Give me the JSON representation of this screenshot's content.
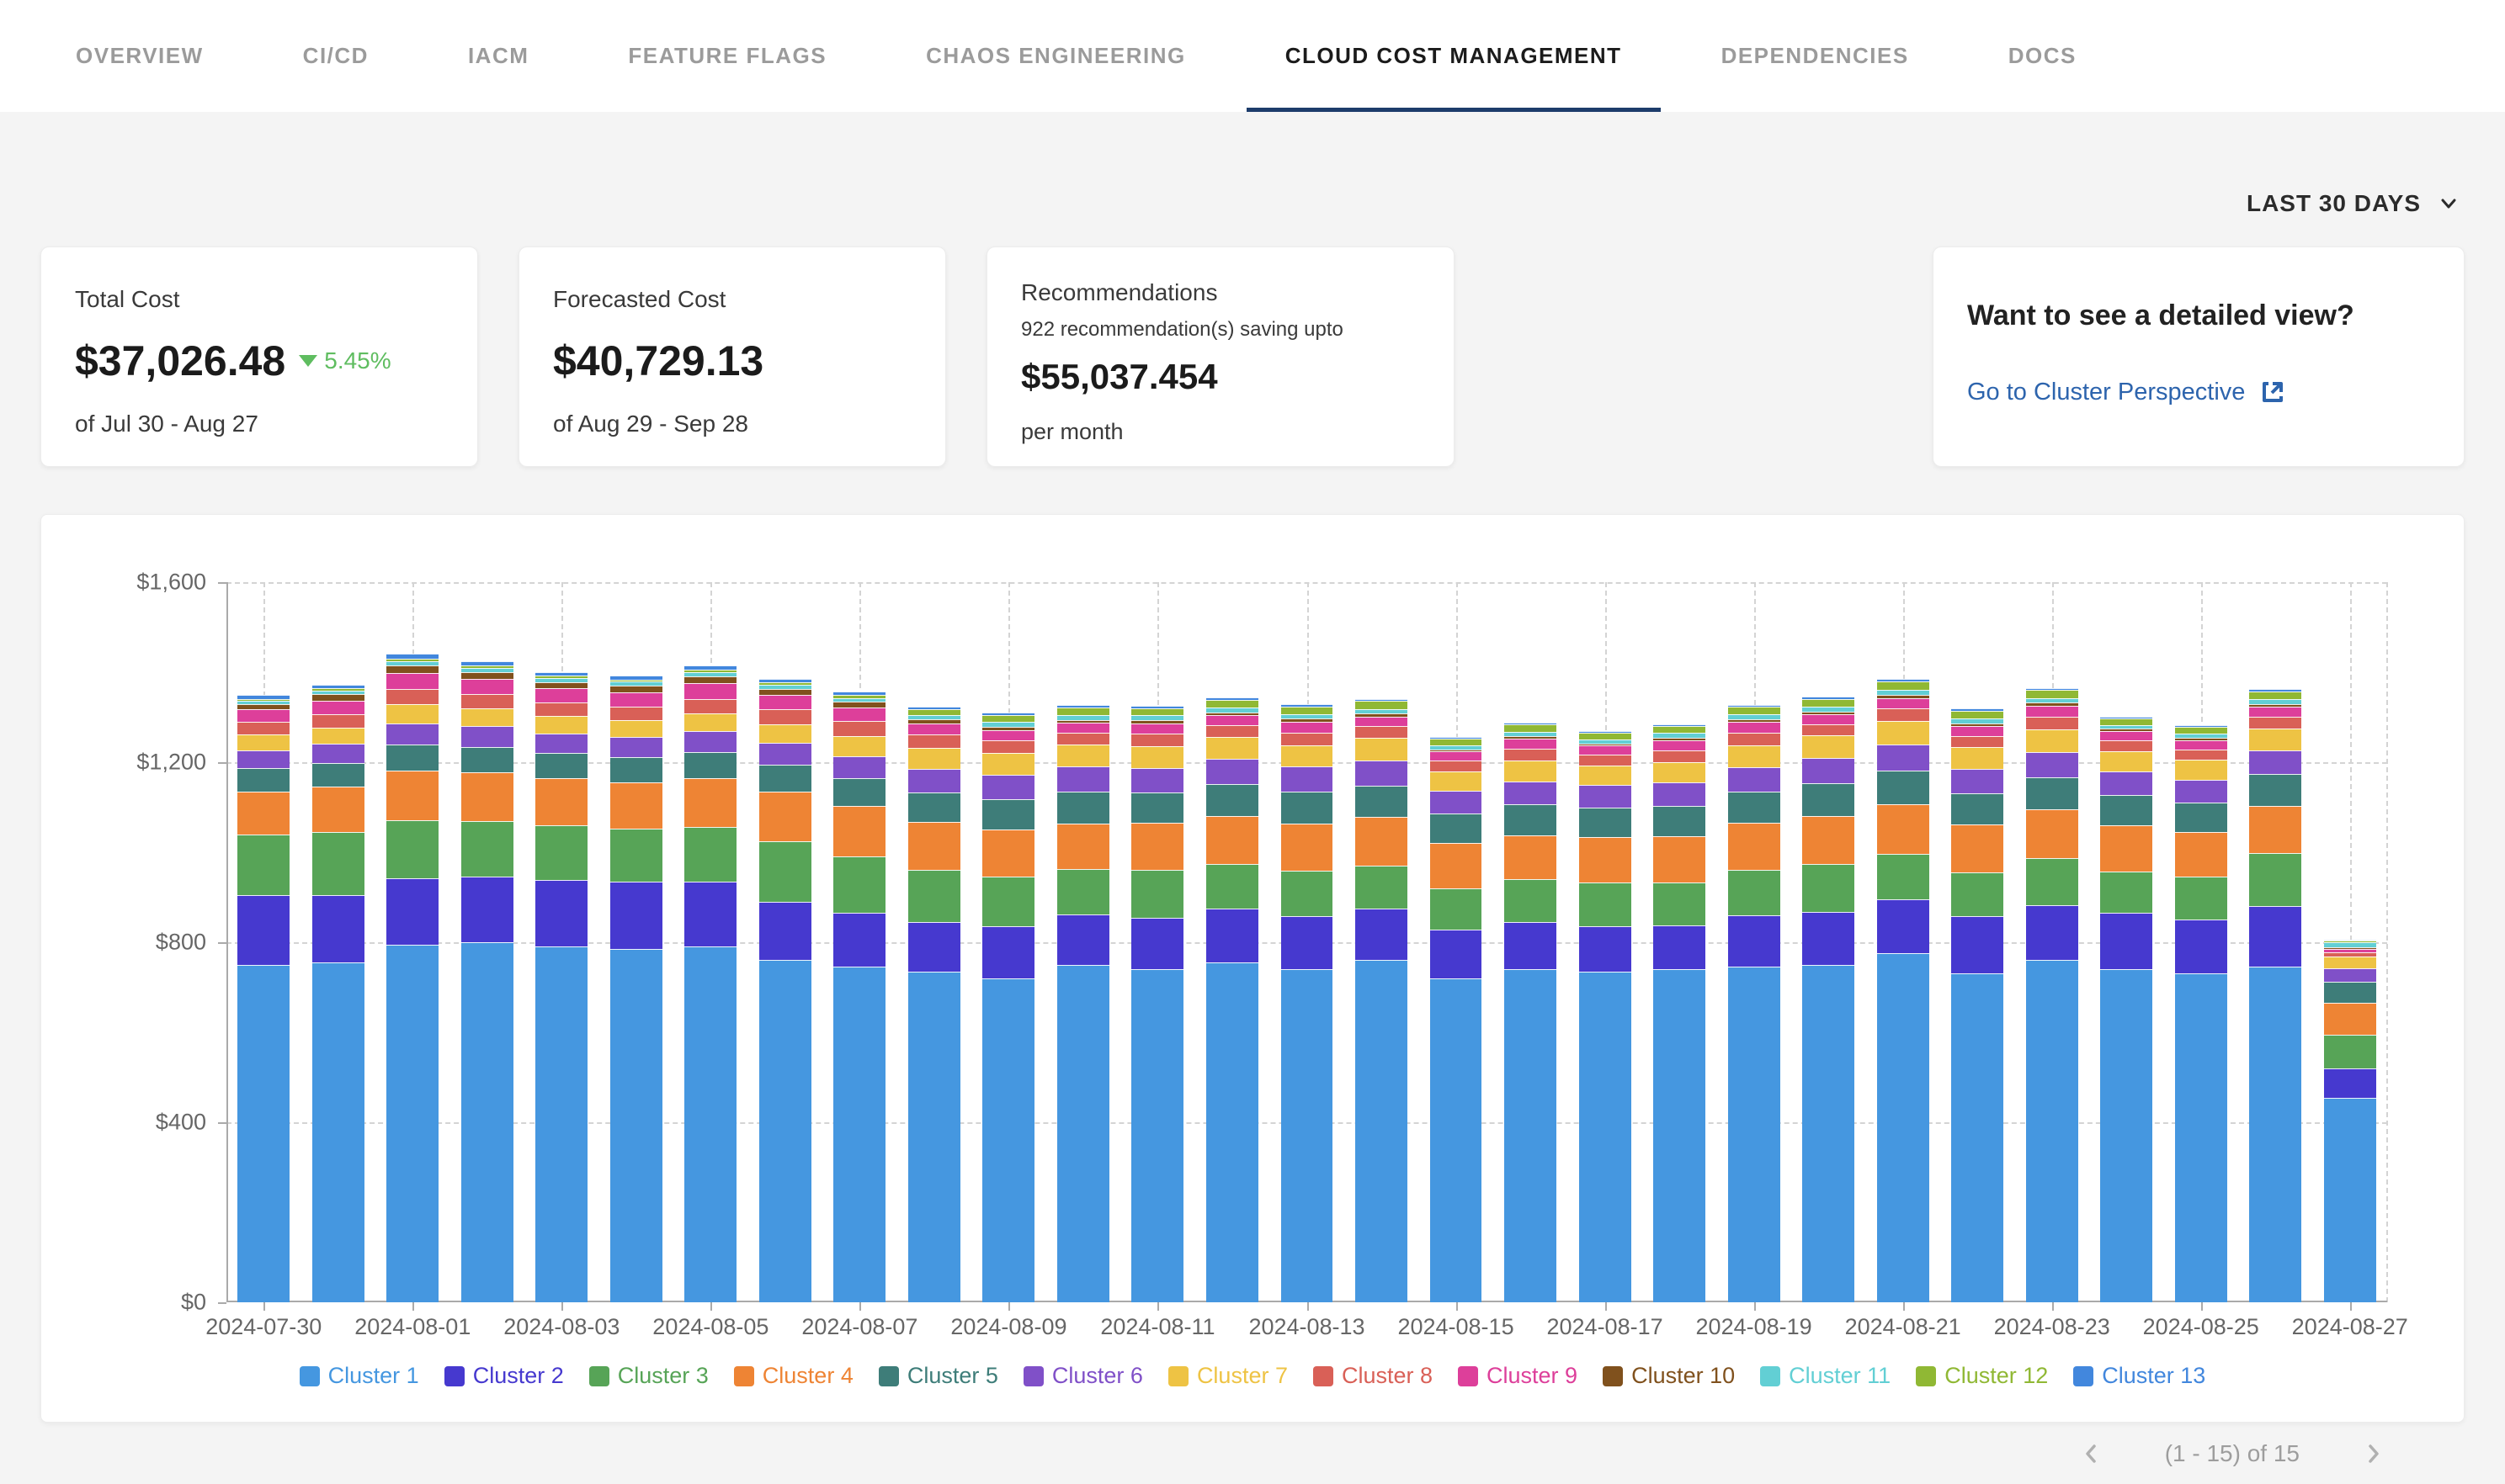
{
  "tabs": {
    "items": [
      {
        "label": "OVERVIEW",
        "active": false
      },
      {
        "label": "CI/CD",
        "active": false
      },
      {
        "label": "IACM",
        "active": false
      },
      {
        "label": "FEATURE FLAGS",
        "active": false
      },
      {
        "label": "CHAOS ENGINEERING",
        "active": false
      },
      {
        "label": "CLOUD COST MANAGEMENT",
        "active": true
      },
      {
        "label": "DEPENDENCIES",
        "active": false
      },
      {
        "label": "DOCS",
        "active": false
      }
    ]
  },
  "time_filter": {
    "label": "LAST 30 DAYS"
  },
  "cards": {
    "total_cost": {
      "title": "Total Cost",
      "value": "$37,026.48",
      "delta": "5.45%",
      "delta_direction": "down",
      "delta_color": "#5fbd60",
      "period": "of Jul 30 - Aug 27"
    },
    "forecasted": {
      "title": "Forecasted Cost",
      "value": "$40,729.13",
      "period": "of Aug 29 - Sep 28"
    },
    "recommendations": {
      "title": "Recommendations",
      "subtitle": "922 recommendation(s) saving upto",
      "value": "$55,037.454",
      "period": "per month"
    },
    "detail": {
      "title": "Want to see a detailed view?",
      "link_label": "Go to Cluster Perspective",
      "link_color": "#2d64ad"
    }
  },
  "chart_data": {
    "type": "bar",
    "stacked": true,
    "title": "",
    "xlabel": "",
    "ylabel": "",
    "ylim": [
      0,
      1600
    ],
    "y_ticks": [
      "$0",
      "$400",
      "$800",
      "$1,200",
      "$1,600"
    ],
    "grid": "dashed",
    "legend_position": "bottom",
    "x": [
      "2024-07-30",
      "2024-07-31",
      "2024-08-01",
      "2024-08-02",
      "2024-08-03",
      "2024-08-04",
      "2024-08-05",
      "2024-08-06",
      "2024-08-07",
      "2024-08-08",
      "2024-08-09",
      "2024-08-10",
      "2024-08-11",
      "2024-08-12",
      "2024-08-13",
      "2024-08-14",
      "2024-08-15",
      "2024-08-16",
      "2024-08-17",
      "2024-08-18",
      "2024-08-19",
      "2024-08-20",
      "2024-08-21",
      "2024-08-22",
      "2024-08-23",
      "2024-08-24",
      "2024-08-25",
      "2024-08-26",
      "2024-08-27"
    ],
    "series": [
      {
        "name": "Cluster 1",
        "color": "#4597e0",
        "values": [
          750,
          755,
          795,
          800,
          790,
          785,
          790,
          760,
          745,
          735,
          720,
          750,
          740,
          755,
          740,
          760,
          720,
          740,
          735,
          740,
          745,
          750,
          775,
          730,
          760,
          740,
          730,
          745,
          455
        ]
      },
      {
        "name": "Cluster 2",
        "color": "#4639cf",
        "values": [
          155,
          150,
          148,
          145,
          148,
          150,
          145,
          130,
          120,
          110,
          115,
          112,
          115,
          120,
          118,
          115,
          108,
          105,
          100,
          98,
          115,
          118,
          120,
          128,
          122,
          125,
          120,
          135,
          65
        ]
      },
      {
        "name": "Cluster 3",
        "color": "#57a457",
        "values": [
          135,
          140,
          128,
          125,
          122,
          118,
          122,
          135,
          125,
          115,
          110,
          100,
          105,
          98,
          100,
          95,
          92,
          95,
          98,
          95,
          100,
          105,
          102,
          98,
          105,
          92,
          95,
          118,
          75
        ]
      },
      {
        "name": "Cluster 4",
        "color": "#ee8434",
        "values": [
          95,
          100,
          110,
          108,
          105,
          102,
          108,
          110,
          112,
          108,
          105,
          102,
          105,
          108,
          105,
          108,
          100,
          98,
          100,
          102,
          105,
          108,
          110,
          105,
          108,
          102,
          100,
          105,
          70
        ]
      },
      {
        "name": "Cluster 5",
        "color": "#3e7d79",
        "values": [
          52,
          54,
          58,
          56,
          55,
          56,
          58,
          60,
          62,
          65,
          68,
          70,
          68,
          70,
          72,
          70,
          66,
          68,
          66,
          68,
          70,
          72,
          74,
          70,
          72,
          68,
          66,
          70,
          48
        ]
      },
      {
        "name": "Cluster 6",
        "color": "#8050c8",
        "values": [
          40,
          42,
          48,
          46,
          44,
          45,
          46,
          48,
          50,
          52,
          54,
          56,
          54,
          56,
          55,
          56,
          50,
          52,
          50,
          52,
          54,
          56,
          58,
          54,
          56,
          52,
          50,
          54,
          30
        ]
      },
      {
        "name": "Cluster 7",
        "color": "#eec344",
        "values": [
          34,
          36,
          42,
          40,
          38,
          38,
          40,
          42,
          44,
          46,
          48,
          50,
          48,
          50,
          48,
          50,
          44,
          46,
          44,
          46,
          48,
          50,
          52,
          48,
          50,
          46,
          44,
          48,
          26
        ]
      },
      {
        "name": "Cluster 8",
        "color": "#d96057",
        "values": [
          28,
          30,
          34,
          32,
          30,
          30,
          32,
          32,
          34,
          30,
          28,
          26,
          28,
          26,
          28,
          26,
          24,
          26,
          24,
          26,
          28,
          26,
          28,
          26,
          28,
          24,
          24,
          26,
          8
        ]
      },
      {
        "name": "Cluster 9",
        "color": "#dd3f9a",
        "values": [
          28,
          30,
          36,
          34,
          32,
          32,
          34,
          32,
          30,
          26,
          24,
          22,
          24,
          22,
          24,
          22,
          20,
          22,
          20,
          22,
          24,
          22,
          24,
          22,
          24,
          20,
          20,
          22,
          8
        ]
      },
      {
        "name": "Cluster 10",
        "color": "#80511d",
        "values": [
          12,
          14,
          16,
          15,
          14,
          14,
          15,
          14,
          12,
          8,
          7,
          6,
          7,
          6,
          7,
          6,
          5,
          6,
          5,
          6,
          7,
          6,
          7,
          6,
          7,
          5,
          5,
          6,
          4
        ]
      },
      {
        "name": "Cluster 11",
        "color": "#62cfd4",
        "values": [
          8,
          8,
          10,
          9,
          9,
          9,
          10,
          9,
          9,
          9,
          10,
          10,
          10,
          10,
          10,
          10,
          9,
          10,
          9,
          10,
          10,
          10,
          11,
          10,
          10,
          9,
          9,
          11,
          12
        ]
      },
      {
        "name": "Cluster 12",
        "color": "#90b834",
        "values": [
          4,
          5,
          6,
          5,
          5,
          5,
          6,
          5,
          6,
          14,
          16,
          18,
          16,
          18,
          17,
          18,
          15,
          16,
          15,
          16,
          17,
          18,
          19,
          17,
          18,
          15,
          15,
          18,
          3
        ]
      },
      {
        "name": "Cluster 13",
        "color": "#4287dd",
        "values": [
          8,
          8,
          10,
          9,
          9,
          9,
          10,
          9,
          9,
          5,
          5,
          5,
          5,
          5,
          5,
          5,
          4,
          4,
          4,
          4,
          5,
          5,
          5,
          5,
          5,
          4,
          4,
          5,
          2
        ]
      }
    ]
  },
  "pagination": {
    "label": "(1 - 15) of 15"
  }
}
